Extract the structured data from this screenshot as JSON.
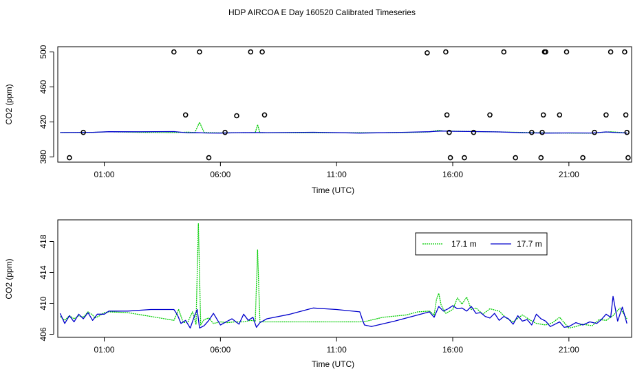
{
  "figure": {
    "title": "HDP AIRCOA E  Day 160520  Calibrated Timeseries"
  },
  "chart_data": [
    {
      "type": "line",
      "panel": "top",
      "xlabel": "Time (UTC)",
      "ylabel": "CO2 (ppm)",
      "x_unit": "hours UTC",
      "xlim": [
        -1,
        23.7
      ],
      "ylim": [
        374,
        506
      ],
      "x_ticks": [
        {
          "value": 1,
          "label": "01:00"
        },
        {
          "value": 6,
          "label": "06:00"
        },
        {
          "value": 11,
          "label": "11:00"
        },
        {
          "value": 16,
          "label": "16:00"
        },
        {
          "value": 21,
          "label": "21:00"
        }
      ],
      "y_ticks": [
        380,
        420,
        460,
        500
      ],
      "series": [
        {
          "name": "17.1 m",
          "color": "#00cc00",
          "x": [
            -0.9,
            0.5,
            1.2,
            2.5,
            4.0,
            4.6,
            4.9,
            5.1,
            5.3,
            6.0,
            7.0,
            7.5,
            7.6,
            7.7,
            8.0,
            10.0,
            12.0,
            14.0,
            15.0,
            15.4,
            15.6,
            16.0,
            17.0,
            18.0,
            19.0,
            20.0,
            21.0,
            22.0,
            22.8,
            23.5
          ],
          "values": [
            407.8,
            408.0,
            408.7,
            408.1,
            407.8,
            408.3,
            407.9,
            419.6,
            407.9,
            407.5,
            407.6,
            407.8,
            416.8,
            407.5,
            407.6,
            407.6,
            407.6,
            407.8,
            408.6,
            410.5,
            409.5,
            409.4,
            409.0,
            408.6,
            408.0,
            407.5,
            407.2,
            407.2,
            408.7,
            407.5
          ]
        },
        {
          "name": "17.7 m",
          "color": "#0000cc",
          "x": [
            -0.9,
            0.5,
            1.2,
            2.5,
            4.0,
            4.6,
            5.0,
            5.5,
            6.0,
            7.0,
            8.0,
            10.0,
            12.0,
            13.0,
            14.0,
            15.0,
            15.5,
            16.0,
            17.0,
            18.0,
            19.0,
            20.0,
            21.0,
            22.0,
            22.6,
            23.0,
            23.5
          ],
          "values": [
            407.9,
            408.1,
            408.8,
            408.7,
            409.0,
            407.5,
            407.6,
            407.3,
            407.2,
            407.8,
            407.7,
            408.2,
            407.2,
            407.6,
            408.2,
            408.8,
            409.6,
            409.3,
            409.0,
            408.6,
            407.6,
            407.2,
            407.4,
            407.3,
            408.6,
            407.9,
            407.3
          ]
        }
      ],
      "outlier_points": {
        "x": [
          -0.5,
          0.1,
          4.0,
          4.5,
          5.1,
          5.5,
          6.2,
          6.7,
          7.3,
          7.8,
          7.9,
          14.9,
          15.7,
          15.75,
          15.85,
          15.9,
          16.5,
          16.9,
          17.6,
          18.2,
          18.7,
          19.4,
          19.8,
          19.85,
          19.9,
          19.95,
          20.0,
          20.6,
          20.9,
          21.6,
          22.1,
          22.6,
          22.8,
          23.4,
          23.45,
          23.5,
          23.55
        ],
        "y": [
          379,
          408,
          500,
          428,
          500,
          379,
          408,
          427,
          500,
          500,
          428,
          499,
          500,
          428,
          408,
          379,
          379,
          408,
          428,
          500,
          379,
          408,
          379,
          408,
          428,
          500,
          500,
          428,
          500,
          379,
          408,
          428,
          500,
          500,
          428,
          408,
          379
        ]
      }
    },
    {
      "type": "line",
      "panel": "bottom",
      "xlabel": "Time (UTC)",
      "ylabel": "CO2 (ppm)",
      "x_unit": "hours UTC",
      "xlim": [
        -1,
        23.7
      ],
      "ylim": [
        405.6,
        420.8
      ],
      "x_ticks": [
        {
          "value": 1,
          "label": "01:00"
        },
        {
          "value": 6,
          "label": "06:00"
        },
        {
          "value": 11,
          "label": "11:00"
        },
        {
          "value": 16,
          "label": "16:00"
        },
        {
          "value": 21,
          "label": "21:00"
        }
      ],
      "y_ticks": [
        406,
        410,
        414,
        418
      ],
      "legend": {
        "position": "top-right",
        "entries": [
          "17.1 m",
          "17.7 m"
        ]
      },
      "series": [
        {
          "name": "17.1 m",
          "color": "#00cc00",
          "x": [
            -0.9,
            -0.7,
            -0.5,
            -0.3,
            -0.1,
            0.1,
            0.3,
            0.5,
            0.6,
            0.8,
            1.0,
            1.2,
            2.0,
            3.0,
            4.0,
            4.2,
            4.4,
            4.6,
            4.8,
            4.95,
            5.05,
            5.15,
            5.3,
            5.5,
            5.7,
            6.0,
            6.3,
            6.6,
            7.0,
            7.3,
            7.5,
            7.6,
            7.65,
            7.7,
            7.8,
            8.5,
            10.0,
            11.0,
            12.0,
            12.3,
            13.0,
            14.0,
            14.5,
            15.0,
            15.2,
            15.3,
            15.4,
            15.5,
            15.7,
            16.0,
            16.2,
            16.4,
            16.6,
            16.8,
            17.0,
            17.3,
            17.6,
            18.0,
            18.3,
            18.6,
            19.0,
            19.3,
            19.6,
            20.0,
            20.3,
            20.6,
            21.0,
            21.3,
            21.6,
            22.0,
            22.3,
            22.6,
            22.9,
            23.2,
            23.5
          ],
          "values": [
            408.3,
            407.8,
            408.4,
            408.0,
            408.4,
            408.2,
            408.9,
            408.5,
            408.1,
            408.4,
            408.8,
            408.9,
            408.8,
            408.3,
            407.8,
            409.2,
            407.5,
            407.6,
            408.9,
            407.3,
            420.3,
            407.2,
            407.9,
            408.1,
            407.4,
            407.6,
            407.5,
            407.6,
            407.6,
            407.8,
            407.7,
            416.9,
            412.0,
            407.6,
            407.6,
            407.6,
            407.6,
            407.6,
            407.6,
            407.7,
            408.2,
            408.5,
            408.9,
            409.0,
            408.5,
            410.5,
            411.3,
            409.8,
            408.7,
            409.2,
            410.7,
            409.9,
            410.8,
            409.2,
            409.4,
            408.6,
            409.3,
            409.0,
            408.1,
            407.6,
            408.5,
            407.9,
            407.4,
            407.2,
            407.5,
            408.2,
            406.8,
            407.0,
            407.3,
            407.1,
            407.9,
            407.8,
            408.4,
            409.4,
            408.0
          ]
        },
        {
          "name": "17.7 m",
          "color": "#0000cc",
          "x": [
            -0.9,
            -0.7,
            -0.5,
            -0.3,
            -0.1,
            0.1,
            0.3,
            0.5,
            0.7,
            1.0,
            1.2,
            2.0,
            3.0,
            4.0,
            4.15,
            4.3,
            4.5,
            4.7,
            4.9,
            5.0,
            5.1,
            5.3,
            5.5,
            5.7,
            6.0,
            6.3,
            6.5,
            6.8,
            7.0,
            7.2,
            7.4,
            7.55,
            7.7,
            8.0,
            9.0,
            10.0,
            11.0,
            12.0,
            12.1,
            12.2,
            12.5,
            13.5,
            14.5,
            15.0,
            15.2,
            15.4,
            15.6,
            15.8,
            16.0,
            16.2,
            16.4,
            16.6,
            16.8,
            17.0,
            17.2,
            17.4,
            17.6,
            17.8,
            18.0,
            18.2,
            18.4,
            18.6,
            18.8,
            19.0,
            19.2,
            19.4,
            19.6,
            19.8,
            20.0,
            20.2,
            20.4,
            20.6,
            20.8,
            21.0,
            21.3,
            21.6,
            21.9,
            22.2,
            22.4,
            22.6,
            22.8,
            22.9,
            23.1,
            23.3,
            23.5
          ],
          "values": [
            408.7,
            407.4,
            408.4,
            407.6,
            408.6,
            408.0,
            408.8,
            407.8,
            408.6,
            408.6,
            409.0,
            409.0,
            409.2,
            409.2,
            408.5,
            407.4,
            407.8,
            406.8,
            408.5,
            409.2,
            406.8,
            407.1,
            407.8,
            408.7,
            407.2,
            407.7,
            408.0,
            407.3,
            408.6,
            407.8,
            408.2,
            406.9,
            407.5,
            408.0,
            408.6,
            409.4,
            409.2,
            408.9,
            408.0,
            407.2,
            407.0,
            407.7,
            408.5,
            408.9,
            408.2,
            409.6,
            409.0,
            409.3,
            409.7,
            409.3,
            409.4,
            409.0,
            409.6,
            408.7,
            408.8,
            408.3,
            408.1,
            408.7,
            407.8,
            408.3,
            408.0,
            407.3,
            408.4,
            407.7,
            407.9,
            407.2,
            408.6,
            408.0,
            407.7,
            407.0,
            407.3,
            407.6,
            406.9,
            407.0,
            407.5,
            407.2,
            407.6,
            407.4,
            407.9,
            408.6,
            408.2,
            410.9,
            407.7,
            409.5,
            407.4
          ]
        }
      ]
    }
  ]
}
